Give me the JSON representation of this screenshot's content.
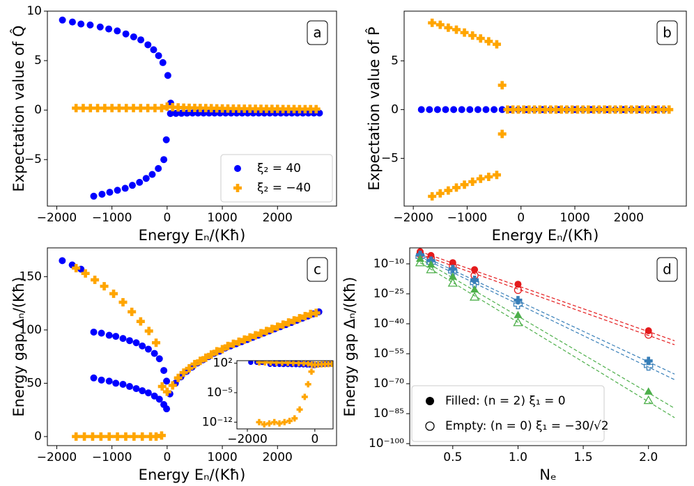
{
  "chart_data": [
    {
      "type": "scatter",
      "label": "a",
      "xlabel": "Energy Eₙ/(Kħ)",
      "ylabel": "Expectation value of Q̂",
      "xlim": [
        -2170,
        3070
      ],
      "ylim": [
        -9.7,
        10
      ],
      "xticks": [
        {
          "value": -2000,
          "label": "−2000"
        },
        {
          "value": -1000,
          "label": "−1000"
        },
        0,
        1000,
        2000
      ],
      "yticks": [
        {
          "value": -5,
          "label": "−5"
        },
        0,
        5,
        10
      ],
      "legend": "lower right",
      "series": [
        {
          "name": "ξ₂ = 40",
          "color": "#0000ff",
          "marker": "o",
          "x": [
            -1897,
            -1716,
            -1561,
            -1394,
            -1213,
            -1058,
            -903,
            -748,
            -606,
            -477,
            -348,
            -245,
            -155,
            -77,
            13,
            65,
            -1330,
            -1180,
            -1040,
            -900,
            -760,
            -630,
            -500,
            -380,
            -270,
            -160,
            -60,
            -15,
            60,
            160,
            260,
            360,
            460,
            560,
            660,
            760,
            860,
            960,
            1060,
            1160,
            1260,
            1360,
            1460,
            1560,
            1660,
            1760,
            1860,
            1960,
            2060,
            2160,
            2260,
            2360,
            2460,
            2560,
            2660,
            2760
          ],
          "values": [
            9.1,
            8.9,
            8.7,
            8.6,
            8.4,
            8.2,
            8.0,
            7.7,
            7.4,
            7.1,
            6.6,
            6.1,
            5.5,
            4.8,
            3.5,
            0.7,
            -8.7,
            -8.5,
            -8.3,
            -8.1,
            -7.9,
            -7.6,
            -7.3,
            -6.9,
            -6.5,
            -5.9,
            -5.0,
            -3.0,
            -0.35,
            -0.33,
            -0.32,
            -0.31,
            -0.3,
            -0.3,
            -0.3,
            -0.3,
            -0.3,
            -0.3,
            -0.3,
            -0.3,
            -0.3,
            -0.3,
            -0.3,
            -0.3,
            -0.3,
            -0.3,
            -0.3,
            -0.3,
            -0.3,
            -0.3,
            -0.3,
            -0.3,
            -0.3,
            -0.3,
            -0.3,
            -0.3
          ]
        },
        {
          "name": "ξ₂ = −40",
          "color": "#ffa500",
          "marker": "P",
          "x": [
            -1650,
            -1520,
            -1390,
            -1260,
            -1130,
            -1000,
            -870,
            -740,
            -610,
            -480,
            -350,
            -220,
            -100,
            0,
            100,
            200,
            300,
            400,
            500,
            600,
            700,
            800,
            900,
            1000,
            1100,
            1200,
            1300,
            1400,
            1500,
            1600,
            1700,
            1800,
            1900,
            2000,
            2100,
            2200,
            2300,
            2400,
            2500,
            2600,
            2700
          ],
          "values": [
            0.2,
            0.2,
            0.2,
            0.2,
            0.2,
            0.2,
            0.2,
            0.2,
            0.2,
            0.2,
            0.2,
            0.2,
            0.2,
            0.35,
            0.3,
            0.27,
            0.25,
            0.23,
            0.22,
            0.21,
            0.2,
            0.19,
            0.18,
            0.17,
            0.16,
            0.15,
            0.15,
            0.14,
            0.14,
            0.13,
            0.13,
            0.12,
            0.12,
            0.12,
            0.11,
            0.11,
            0.11,
            0.1,
            0.1,
            0.1,
            0.1
          ]
        }
      ]
    },
    {
      "type": "scatter",
      "label": "b",
      "xlabel": "Energy Eₙ/(Kħ)",
      "ylabel": "Expectation value of P̂",
      "xlim": [
        -2170,
        3070
      ],
      "ylim": [
        -9.9,
        10.1
      ],
      "xticks": [
        {
          "value": -2000,
          "label": "−2000"
        },
        {
          "value": -1000,
          "label": "−1000"
        },
        0,
        1000,
        2000
      ],
      "yticks": [
        {
          "value": -5,
          "label": "−5"
        },
        0,
        5
      ],
      "series": [
        {
          "color": "#0000ff",
          "marker": "o",
          "x": [
            -1850,
            -1700,
            -1550,
            -1400,
            -1250,
            -1100,
            -950,
            -800,
            -650,
            -500,
            -350,
            -200,
            -50,
            100,
            250,
            400,
            550,
            700,
            850,
            1000,
            1150,
            1300,
            1450,
            1600,
            1750,
            1900,
            2050,
            2200,
            2350,
            2500,
            2650
          ],
          "values": [
            0,
            0,
            0,
            0,
            0,
            0,
            0,
            0,
            0,
            0,
            0,
            0,
            0,
            0,
            0,
            0,
            0,
            0,
            0,
            0,
            0,
            0,
            0,
            0,
            0,
            0,
            0,
            0,
            0,
            0,
            0
          ]
        },
        {
          "color": "#ffa500",
          "marker": "P",
          "x": [
            -1650,
            -1500,
            -1350,
            -1200,
            -1050,
            -900,
            -750,
            -600,
            -450,
            -1650,
            -1500,
            -1350,
            -1200,
            -1050,
            -900,
            -750,
            -600,
            -450,
            -350,
            -350,
            -250,
            -150,
            -50,
            50,
            150,
            250,
            350,
            450,
            550,
            650,
            750,
            850,
            950,
            1050,
            1150,
            1250,
            1350,
            1450,
            1550,
            1650,
            1750,
            1850,
            1950,
            2050,
            2150,
            2250,
            2350,
            2450,
            2550,
            2650,
            2750
          ],
          "values": [
            8.9,
            8.7,
            8.4,
            8.2,
            7.9,
            7.6,
            7.3,
            7.0,
            6.7,
            -8.9,
            -8.6,
            -8.3,
            -8.0,
            -7.7,
            -7.4,
            -7.1,
            -6.9,
            -6.7,
            2.5,
            -2.5,
            0,
            0,
            0,
            0,
            0,
            0,
            0,
            0,
            0,
            0,
            0,
            0,
            0,
            0,
            0,
            0,
            0,
            0,
            0,
            0,
            0,
            0,
            0,
            0,
            0,
            0,
            0,
            0,
            0,
            0,
            0
          ]
        }
      ]
    },
    {
      "type": "scatter",
      "label": "c",
      "xlabel": "Energy Eₙ/(Kħ)",
      "ylabel": "Energy gap Δₙ/(Kħ)",
      "xlim": [
        -2170,
        3070
      ],
      "ylim": [
        -8.5,
        177
      ],
      "xticks": [
        {
          "value": -2000,
          "label": "−2000"
        },
        {
          "value": -1000,
          "label": "−1000"
        },
        0,
        1000,
        2000
      ],
      "yticks": [
        0,
        50,
        100,
        150
      ],
      "inset": {
        "xlim": [
          -2310,
          540
        ],
        "ylim": [
          2.5e-14,
          400
        ],
        "log_y": true,
        "xticks": [
          {
            "value": -2000,
            "label": "−2000"
          },
          0
        ],
        "yticks": [
          {
            "value": 1e-12,
            "label": "10⁻¹²"
          },
          {
            "value": 1e-05,
            "label": "10⁻⁵"
          },
          {
            "value": 100,
            "label": "10²"
          }
        ]
      },
      "series": [
        {
          "color": "#0000ff",
          "marker": "o",
          "x": [
            -1900,
            -1720,
            -1560,
            -1330,
            -1190,
            -1050,
            -930,
            -800,
            -680,
            -560,
            -450,
            -340,
            -230,
            -140,
            -60,
            -10,
            -1330,
            -1190,
            -1050,
            -930,
            -800,
            -680,
            -560,
            -450,
            -340,
            -230,
            -140,
            -60,
            -10,
            50,
            150,
            250,
            350,
            450,
            550,
            650,
            750,
            850,
            950,
            1050,
            1150,
            1250,
            1350,
            1450,
            1550,
            1650,
            1750,
            1850,
            1950,
            2050,
            2150,
            2250,
            2350,
            2450,
            2550,
            2650,
            2750
          ],
          "values": [
            165,
            161,
            157,
            98,
            97,
            95,
            94,
            92,
            90,
            88,
            85,
            82,
            78,
            73,
            62,
            52,
            55,
            53,
            52,
            50,
            49,
            47,
            45,
            43,
            41,
            38,
            35,
            30,
            26,
            40,
            50,
            56,
            61,
            65,
            69,
            72,
            75,
            78,
            80,
            83,
            85,
            87,
            89,
            91,
            93,
            95,
            97,
            99,
            101,
            103,
            105,
            107,
            109,
            111,
            113,
            115,
            117
          ]
        },
        {
          "color": "#ffa500",
          "marker": "P",
          "x": [
            -1650,
            -1480,
            -1310,
            -1140,
            -970,
            -800,
            -640,
            -480,
            -330,
            -200,
            -90,
            -1650,
            -1500,
            -1350,
            -1200,
            -1050,
            -900,
            -750,
            -600,
            -450,
            -300,
            -200,
            -100,
            0,
            100,
            200,
            300,
            400,
            500,
            600,
            700,
            800,
            900,
            1000,
            1100,
            1200,
            1300,
            1400,
            1500,
            1600,
            1700,
            1800,
            1900,
            2000,
            2100,
            2200,
            2300,
            2400,
            2500,
            2600,
            2700
          ],
          "values": [
            158,
            153,
            147,
            141,
            134,
            126,
            117,
            108,
            99,
            88,
            47,
            1e-12,
            3e-13,
            5e-13,
            1e-12,
            5e-13,
            1e-12,
            2e-12,
            8e-12,
            1e-09,
            1e-06,
            0.001,
            1,
            42,
            48,
            55,
            60,
            64,
            68,
            71,
            74,
            77,
            80,
            82,
            85,
            87,
            89,
            91,
            93,
            95,
            97,
            99,
            101,
            103,
            105,
            107,
            109,
            111,
            113,
            115,
            116
          ]
        }
      ]
    },
    {
      "type": "scatter",
      "label": "d",
      "xlabel": "Nₑ",
      "ylabel": "Energy gap Δₙ/(Kħ)",
      "xlim": [
        0.17,
        2.29
      ],
      "ylim": [
        1e-101,
        0.01
      ],
      "log_y": true,
      "xticks": [
        0.5,
        {
          "value": 1,
          "label": "1.0"
        },
        1.5,
        {
          "value": 2,
          "label": "2.0"
        }
      ],
      "yticks": [
        {
          "value": 1e-10,
          "label": "10⁻¹⁰"
        },
        {
          "value": 1e-25,
          "label": "10⁻²⁵"
        },
        {
          "value": 1e-40,
          "label": "10⁻⁴⁰"
        },
        {
          "value": 1e-55,
          "label": "10⁻⁵⁵"
        },
        {
          "value": 1e-70,
          "label": "10⁻⁷⁰"
        },
        {
          "value": 1e-85,
          "label": "10⁻⁸⁵"
        },
        {
          "value": 1e-100,
          "label": "10⁻¹⁰⁰"
        }
      ],
      "legend": "lower left",
      "legend_entries": [
        {
          "label": "Filled:  (n = 2) ξ₁ = 0",
          "filled": true
        },
        {
          "label": "Empty: (n = 0) ξ₁ = −30/√2",
          "filled": false
        }
      ],
      "x": [
        0.25,
        0.333,
        0.5,
        0.667,
        1.0,
        2.0
      ],
      "fit_x": [
        0.25,
        2.2
      ],
      "series": [
        {
          "color": "#e41a1c",
          "marker": "o",
          "filled": true,
          "values": [
            0.00013,
            1.6e-06,
            4e-10,
            1.3e-13,
            6.3e-21,
            3.2e-44
          ],
          "fit": [
            0.00013,
            3.2e-49
          ]
        },
        {
          "color": "#e41a1c",
          "marker": "o",
          "filled": false,
          "values": [
            6.3e-06,
            7.9e-08,
            1e-11,
            1.6e-16,
            7.9e-24,
            3.2e-46
          ],
          "fit": [
            6.3e-06,
            3.2e-51
          ]
        },
        {
          "color": "#377eb8",
          "marker": "P",
          "filled": true,
          "values": [
            3.2e-06,
            4e-09,
            2.5e-13,
            1e-18,
            6.3e-29,
            2.5e-59
          ],
          "fit": [
            3.2e-06,
            6.3e-66
          ]
        },
        {
          "color": "#377eb8",
          "marker": "P",
          "filled": false,
          "values": [
            3.2e-07,
            4e-10,
            1.6e-14,
            2.5e-20,
            4e-31,
            7.9e-62
          ],
          "fit": [
            3.2e-07,
            1e-68
          ]
        },
        {
          "color": "#4daf4a",
          "marker": "^",
          "filled": true,
          "values": [
            4e-08,
            5e-11,
            4e-17,
            1.6e-23,
            2.5e-36,
            1.3e-74
          ],
          "fit": [
            4e-08,
            5e-83
          ]
        },
        {
          "color": "#4daf4a",
          "marker": "^",
          "filled": false,
          "values": [
            4e-10,
            1.3e-13,
            2.5e-20,
            2.5e-27,
            4e-40,
            4e-79
          ],
          "fit": [
            4e-10,
            1e-87
          ]
        }
      ]
    }
  ]
}
